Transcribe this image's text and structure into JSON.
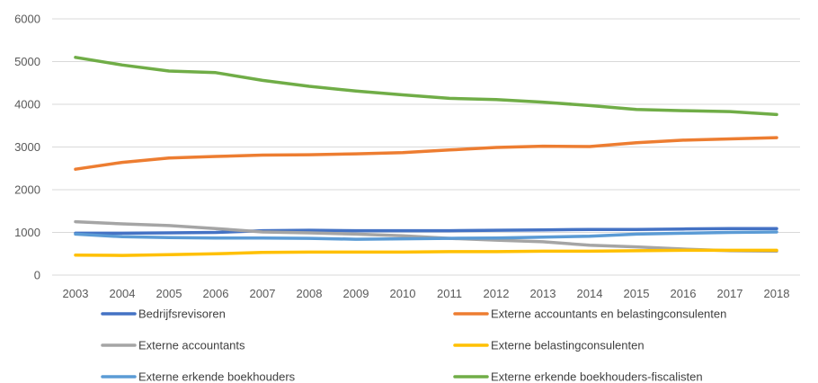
{
  "chart_data": {
    "type": "line",
    "title": "",
    "xlabel": "",
    "ylabel": "",
    "ylim": [
      0,
      6000
    ],
    "yticks": [
      0,
      1000,
      2000,
      3000,
      4000,
      5000,
      6000
    ],
    "grid": "horizontal",
    "legend_position": "bottom",
    "x": [
      "2003",
      "2004",
      "2005",
      "2006",
      "2007",
      "2008",
      "2009",
      "2010",
      "2011",
      "2012",
      "2013",
      "2014",
      "2015",
      "2016",
      "2017",
      "2018"
    ],
    "series": [
      {
        "name": "Bedrijfsrevisoren",
        "color": "#4472C4",
        "values": [
          980,
          980,
          990,
          1000,
          1040,
          1050,
          1040,
          1040,
          1040,
          1050,
          1060,
          1070,
          1070,
          1080,
          1090,
          1090
        ]
      },
      {
        "name": "Externe accountants en belastingconsulenten",
        "color": "#ED7D31",
        "values": [
          2480,
          2640,
          2740,
          2780,
          2810,
          2820,
          2840,
          2870,
          2930,
          2990,
          3020,
          3010,
          3100,
          3160,
          3190,
          3220
        ]
      },
      {
        "name": "Externe accountants",
        "color": "#A5A5A5",
        "values": [
          1250,
          1200,
          1160,
          1090,
          1010,
          990,
          960,
          920,
          860,
          820,
          780,
          700,
          660,
          610,
          570,
          560
        ]
      },
      {
        "name": "Externe belastingconsulenten",
        "color": "#FFC000",
        "values": [
          470,
          460,
          480,
          500,
          530,
          540,
          540,
          540,
          550,
          550,
          560,
          560,
          570,
          580,
          580,
          580
        ]
      },
      {
        "name": "Externe erkende boekhouders",
        "color": "#5B9BD5",
        "values": [
          960,
          900,
          880,
          870,
          870,
          860,
          840,
          850,
          860,
          870,
          890,
          910,
          960,
          980,
          1000,
          1010
        ]
      },
      {
        "name": "Externe erkende boekhouders-fiscalisten",
        "color": "#70AD47",
        "values": [
          5100,
          4920,
          4780,
          4740,
          4560,
          4420,
          4310,
          4220,
          4140,
          4110,
          4050,
          3970,
          3880,
          3850,
          3830,
          3760
        ]
      }
    ]
  }
}
